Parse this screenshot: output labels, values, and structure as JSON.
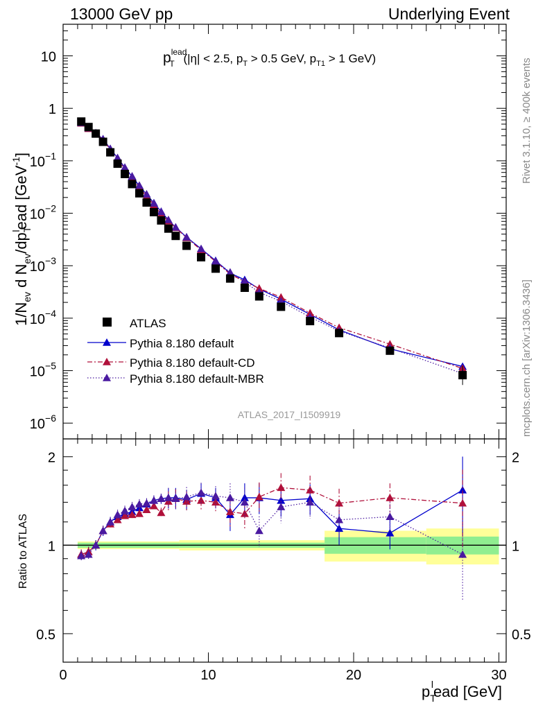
{
  "header": {
    "left": "13000 GeV pp",
    "right": "Underlying Event"
  },
  "side_labels": {
    "top": "Rivet 3.1.10, ≥ 400k events",
    "bottom": "mcplots.cern.ch [arXiv:1306.3436]"
  },
  "analysis_id": "ATLAS_2017_I1509919",
  "chart_data": [
    {
      "type": "scatter",
      "panel": "main",
      "title": "p_T^lead (|η| < 2.5, p_T > 0.5 GeV, p_T1 > 1 GeV)",
      "title_parts": {
        "p": "p",
        "sub_t": "T",
        "sup_lead": "lead",
        "rest1": " (|η| < 2.5, p",
        "sub_t2": "T",
        "rest2": " > 0.5 GeV, p",
        "sub_t1": "T1",
        "rest3": " > 1 GeV)"
      },
      "ylabel": "1/N_ev d N_ev/dp_T^l ead [GeV^-1]",
      "ylabel_parts": {
        "a": "1/N",
        "sub_ev": "ev",
        "b": " d N",
        "sub_ev2": "ev",
        "c": "/dp",
        "sub_t": "T",
        "sup_l": "l",
        "d": "ead [GeV",
        "sup_m1": "-1",
        "e": "]"
      },
      "xlim": [
        0,
        30.5
      ],
      "ylim": [
        5e-07,
        40
      ],
      "yscale": "log",
      "y_tick_labels": [
        {
          "value": 10,
          "label": "10"
        },
        {
          "value": 1,
          "label": "1"
        },
        {
          "value": 0.1,
          "base": "10",
          "exp": "−1"
        },
        {
          "value": 0.01,
          "base": "10",
          "exp": "−2"
        },
        {
          "value": 0.001,
          "base": "10",
          "exp": "−3"
        },
        {
          "value": 0.0001,
          "base": "10",
          "exp": "−4"
        },
        {
          "value": 1e-05,
          "base": "10",
          "exp": "−5"
        },
        {
          "value": 1e-06,
          "base": "10",
          "exp": "−6"
        }
      ],
      "legend_position": "bottom-left",
      "series": [
        {
          "name": "ATLAS",
          "style": "data",
          "color": "#000000",
          "x": [
            1.25,
            1.75,
            2.25,
            2.75,
            3.25,
            3.75,
            4.25,
            4.75,
            5.25,
            5.75,
            6.25,
            6.75,
            7.25,
            7.75,
            8.5,
            9.5,
            10.5,
            11.5,
            12.5,
            13.5,
            15.0,
            17.0,
            19.0,
            22.5,
            27.5
          ],
          "y": [
            0.56,
            0.44,
            0.33,
            0.23,
            0.145,
            0.088,
            0.056,
            0.036,
            0.024,
            0.016,
            0.0105,
            0.0073,
            0.0051,
            0.0037,
            0.0024,
            0.00145,
            0.00088,
            0.00057,
            0.00038,
            0.00026,
            0.000165,
            8.8e-05,
            5.2e-05,
            2.4e-05,
            8.2e-06
          ]
        },
        {
          "name": "Pythia 8.180 default",
          "style": "solid",
          "color": "#0000cc",
          "y": [
            0.53,
            0.42,
            0.33,
            0.26,
            0.17,
            0.113,
            0.074,
            0.05,
            0.033,
            0.023,
            0.0157,
            0.0108,
            0.0074,
            0.0054,
            0.0035,
            0.0021,
            0.00125,
            0.00072,
            0.00054,
            0.00036,
            0.00023,
            0.000118,
            6e-05,
            2.6e-05,
            1.2e-05
          ],
          "ratio": [
            0.93,
            0.95,
            1.0,
            1.12,
            1.2,
            1.25,
            1.28,
            1.3,
            1.34,
            1.38,
            1.42,
            1.44,
            1.45,
            1.45,
            1.43,
            1.5,
            1.45,
            1.27,
            1.45,
            1.45,
            1.42,
            1.44,
            1.14,
            1.1,
            1.54
          ]
        },
        {
          "name": "Pythia 8.180 default-CD",
          "style": "dashdot",
          "color": "#b0103a",
          "y": [
            0.52,
            0.41,
            0.33,
            0.25,
            0.165,
            0.106,
            0.07,
            0.046,
            0.031,
            0.021,
            0.0145,
            0.0095,
            0.0071,
            0.0053,
            0.0034,
            0.002,
            0.0012,
            0.00069,
            0.0005,
            0.00037,
            0.00025,
            0.000125,
            6.6e-05,
            3.2e-05,
            1.1e-05
          ],
          "ratio": [
            0.93,
            0.95,
            1.0,
            1.12,
            1.18,
            1.22,
            1.26,
            1.27,
            1.28,
            1.32,
            1.36,
            1.29,
            1.41,
            1.44,
            1.41,
            1.42,
            1.4,
            1.3,
            1.28,
            1.46,
            1.57,
            1.54,
            1.39,
            1.45,
            1.39
          ]
        },
        {
          "name": "Pythia 8.180 default-MBR",
          "style": "dotted",
          "color": "#4a1aa0",
          "y": [
            0.53,
            0.42,
            0.34,
            0.26,
            0.17,
            0.114,
            0.075,
            0.051,
            0.034,
            0.023,
            0.0155,
            0.0107,
            0.0075,
            0.0054,
            0.0035,
            0.0021,
            0.00122,
            0.00075,
            0.00049,
            0.00031,
            0.00021,
            0.000105,
            5.7e-05,
            2.7e-05,
            8.8e-06
          ],
          "ratio": [
            0.92,
            0.93,
            1.0,
            1.12,
            1.2,
            1.27,
            1.31,
            1.35,
            1.38,
            1.39,
            1.42,
            1.44,
            1.45,
            1.44,
            1.46,
            1.51,
            1.47,
            1.45,
            1.4,
            1.12,
            1.35,
            1.4,
            1.22,
            1.25,
            0.93
          ]
        }
      ]
    },
    {
      "type": "scatter",
      "panel": "ratio",
      "ylabel": "Ratio to ATLAS",
      "xlabel": "p_T^l ead [GeV]",
      "xlabel_parts": {
        "p": "p",
        "sub_t": "T",
        "sup_l": "l",
        "rest": "ead [GeV]"
      },
      "xlim": [
        0,
        30.5
      ],
      "ylim": [
        0.4,
        2.3
      ],
      "yscale": "log",
      "y_tick_labels": [
        {
          "value": 2,
          "label": "2"
        },
        {
          "value": 1,
          "label": "1"
        },
        {
          "value": 0.5,
          "label": "0.5"
        }
      ],
      "x_tick_labels": [
        {
          "value": 0,
          "label": "0"
        },
        {
          "value": 10,
          "label": "10"
        },
        {
          "value": 20,
          "label": "20"
        },
        {
          "value": 30,
          "label": "30"
        }
      ],
      "bands": {
        "edges": [
          1,
          8,
          18,
          25,
          30
        ],
        "green": [
          0.02,
          0.02,
          0.065,
          0.07
        ],
        "yellow": [
          0.03,
          0.04,
          0.12,
          0.14
        ],
        "green_color": "#90ee90",
        "yellow_color": "#ffff99"
      },
      "reference_value": 1
    }
  ]
}
